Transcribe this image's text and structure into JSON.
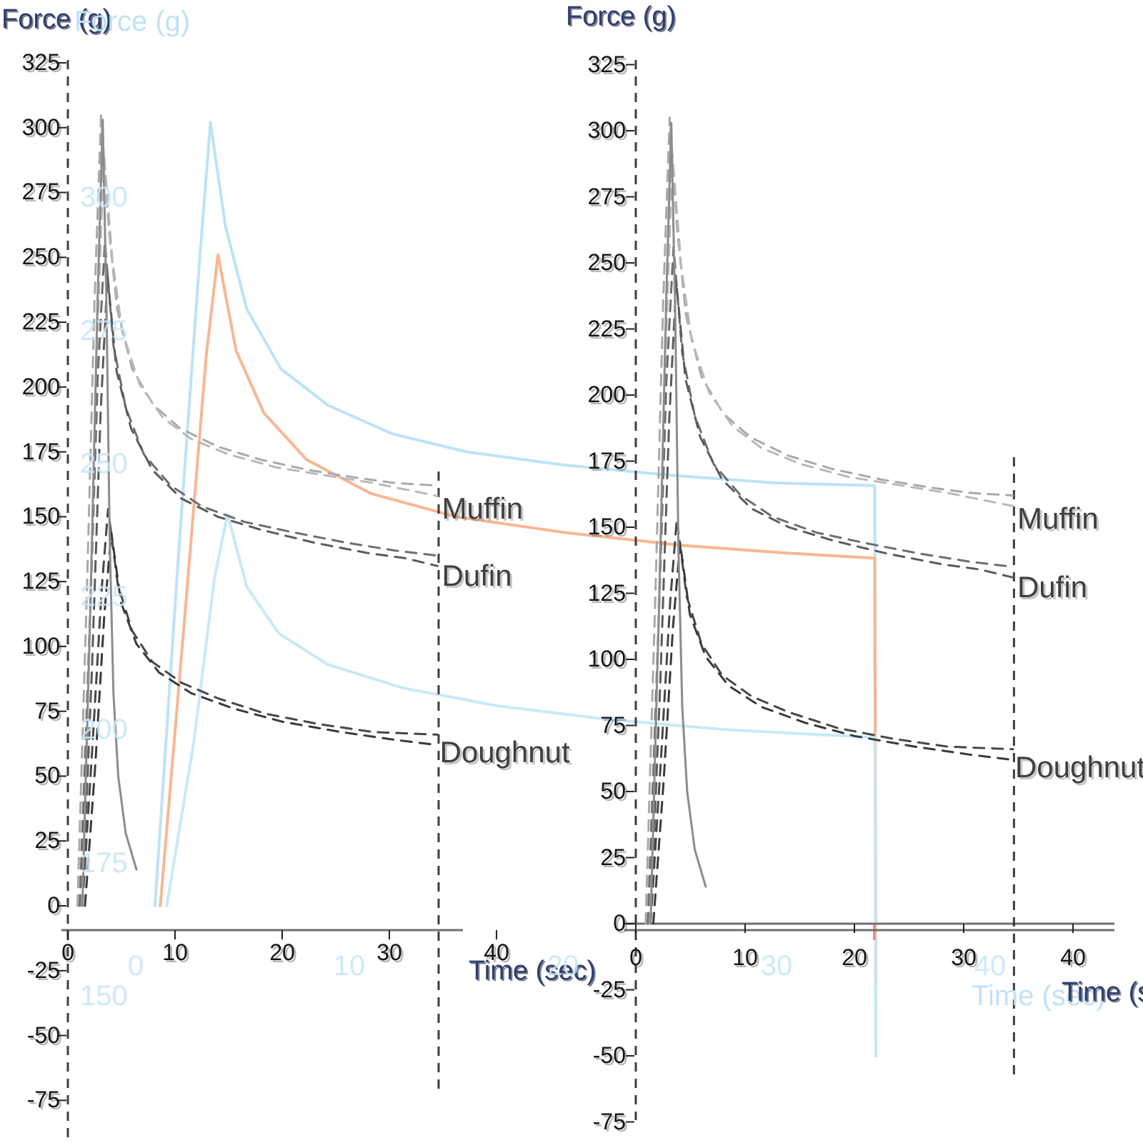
{
  "page": {
    "background": "#ffffff"
  },
  "colors": {
    "axis_title": "#2d3f70",
    "tick_label": "#161616",
    "curve_label": "#3f3f3f",
    "cursor_line": "#2e2e2e",
    "axis_line": "#6f6f6f",
    "ghost_text": "#c6e6f7",
    "ghost_blue": "#b9e1f6",
    "ghost_orange": "#f8b28e"
  },
  "chart_data": {
    "type": "line",
    "title": "Force (g)",
    "xlabel": "Time (sec)",
    "xlim": [
      0,
      40
    ],
    "ylim": [
      -75,
      325
    ],
    "grid": false,
    "legend": "curve-end labels",
    "panels": [
      {
        "id": "left"
      },
      {
        "id": "right"
      }
    ],
    "x_ticks": [
      0,
      10,
      20,
      30,
      40
    ],
    "y_ticks": [
      325,
      300,
      275,
      250,
      225,
      200,
      175,
      150,
      125,
      100,
      75,
      50,
      25,
      0,
      -25,
      -50,
      -75
    ],
    "cursor_lines_t": [
      0,
      34.6
    ],
    "series": [
      {
        "id": "muffin-band-upper",
        "group": "Muffin",
        "style": "dashed",
        "color": "#a9a9a9",
        "width": 3,
        "points": [
          [
            0.9,
            0
          ],
          [
            1.8,
            125
          ],
          [
            2.5,
            235
          ],
          [
            3.1,
            305
          ],
          [
            3.8,
            262
          ],
          [
            4.6,
            230
          ],
          [
            6,
            207
          ],
          [
            8,
            193
          ],
          [
            10.5,
            184
          ],
          [
            14,
            177
          ],
          [
            18,
            172
          ],
          [
            22.5,
            168
          ],
          [
            27,
            165
          ],
          [
            30.5,
            163
          ],
          [
            34.5,
            162
          ]
        ]
      },
      {
        "id": "muffin-band-lower",
        "group": "Muffin",
        "style": "dashed",
        "color": "#b8b8b8",
        "width": 3,
        "points": [
          [
            1.15,
            0
          ],
          [
            2.05,
            112
          ],
          [
            2.75,
            218
          ],
          [
            3.35,
            291
          ],
          [
            4.15,
            249
          ],
          [
            5.1,
            221
          ],
          [
            6.7,
            201
          ],
          [
            8.9,
            188
          ],
          [
            11.5,
            180
          ],
          [
            15,
            174
          ],
          [
            19.5,
            169
          ],
          [
            24,
            166
          ],
          [
            28.5,
            163
          ],
          [
            34.5,
            158
          ]
        ]
      },
      {
        "id": "dufin-band-upper",
        "group": "Dufin",
        "style": "dashed",
        "color": "#6e6e6e",
        "width": 3,
        "points": [
          [
            1.1,
            0
          ],
          [
            2.0,
            102
          ],
          [
            2.8,
            205
          ],
          [
            3.45,
            256
          ],
          [
            4.25,
            216
          ],
          [
            5.4,
            192
          ],
          [
            7.1,
            174
          ],
          [
            9.6,
            162
          ],
          [
            12.5,
            154
          ],
          [
            16.5,
            148
          ],
          [
            21,
            144
          ],
          [
            26,
            140
          ],
          [
            30.5,
            137
          ],
          [
            34.5,
            135
          ]
        ]
      },
      {
        "id": "dufin-band-lower",
        "group": "Dufin",
        "style": "dashed",
        "color": "#5b5b5b",
        "width": 3,
        "points": [
          [
            1.35,
            0
          ],
          [
            2.25,
            92
          ],
          [
            3.05,
            190
          ],
          [
            3.7,
            243
          ],
          [
            4.55,
            206
          ],
          [
            5.9,
            184
          ],
          [
            7.9,
            168
          ],
          [
            10.6,
            157
          ],
          [
            14,
            150
          ],
          [
            18,
            145
          ],
          [
            23,
            140
          ],
          [
            28,
            136
          ],
          [
            31.5,
            134
          ],
          [
            34.5,
            131
          ]
        ]
      },
      {
        "id": "doughnut-band-upper",
        "group": "Doughnut",
        "style": "dashed",
        "color": "#474747",
        "width": 3,
        "points": [
          [
            1.35,
            0
          ],
          [
            2.3,
            62
          ],
          [
            3.15,
            122
          ],
          [
            3.75,
            153
          ],
          [
            4.65,
            124
          ],
          [
            6,
            106
          ],
          [
            7.9,
            94
          ],
          [
            10.6,
            86
          ],
          [
            14,
            80
          ],
          [
            18.5,
            74
          ],
          [
            23.5,
            70
          ],
          [
            28.5,
            67
          ],
          [
            34.5,
            66
          ]
        ]
      },
      {
        "id": "doughnut-band-lower",
        "group": "Doughnut",
        "style": "dashed",
        "color": "#3a3a3a",
        "width": 3,
        "points": [
          [
            1.6,
            0
          ],
          [
            2.55,
            54
          ],
          [
            3.4,
            112
          ],
          [
            4.05,
            144
          ],
          [
            4.95,
            117
          ],
          [
            6.4,
            101
          ],
          [
            8.5,
            90
          ],
          [
            11.5,
            82
          ],
          [
            15.5,
            76
          ],
          [
            20,
            71
          ],
          [
            25.5,
            67
          ],
          [
            30.5,
            64
          ],
          [
            34.5,
            62
          ]
        ]
      },
      {
        "id": "compression-spike",
        "group": "spike",
        "style": "solid",
        "color": "#8c8c8c",
        "width": 3,
        "points": [
          [
            1.35,
            0
          ],
          [
            2.1,
            115
          ],
          [
            2.8,
            238
          ],
          [
            3.25,
            303
          ],
          [
            3.6,
            232
          ],
          [
            3.9,
            142
          ],
          [
            4.25,
            82
          ],
          [
            4.7,
            50
          ],
          [
            5.4,
            28
          ],
          [
            6.4,
            14
          ]
        ]
      }
    ],
    "curve_labels": [
      {
        "text": "Muffin",
        "t": 34.9,
        "F": 154
      },
      {
        "text": "Dufin",
        "t": 34.9,
        "F": 128
      },
      {
        "text": "Doughnut",
        "t": 34.7,
        "F": 60
      }
    ],
    "ghost": {
      "title": "Force (g)",
      "xlabel": "Time (sec)",
      "x_ticks": [
        0,
        10,
        20,
        30,
        40
      ],
      "y_ticks": [
        300,
        275,
        250,
        225,
        200,
        175,
        150
      ],
      "series": [
        {
          "id": "muffin-ghost",
          "color": "#b9e1f6",
          "width": 4,
          "points": [
            [
              0.9,
              0
            ],
            [
              2.0,
              135
            ],
            [
              3.0,
              250
            ],
            [
              3.5,
              302
            ],
            [
              4.2,
              262
            ],
            [
              5.2,
              230
            ],
            [
              6.8,
              207
            ],
            [
              9,
              193
            ],
            [
              12,
              182
            ],
            [
              15.5,
              175
            ],
            [
              20,
              170
            ],
            [
              25,
              166
            ],
            [
              30,
              163
            ],
            [
              34.6,
              162
            ],
            [
              34.65,
              -58
            ]
          ]
        },
        {
          "id": "dufin-ghost",
          "color": "#f8b28e",
          "width": 4,
          "points": [
            [
              1.15,
              0
            ],
            [
              2.3,
              112
            ],
            [
              3.3,
              212
            ],
            [
              3.85,
              251
            ],
            [
              4.7,
              214
            ],
            [
              6,
              190
            ],
            [
              8,
              172
            ],
            [
              11,
              159
            ],
            [
              15,
              150
            ],
            [
              20,
              144
            ],
            [
              25.5,
              139
            ],
            [
              30.5,
              136
            ],
            [
              34.6,
              134
            ],
            [
              34.65,
              -30
            ]
          ]
        },
        {
          "id": "doughnut-ghost",
          "color": "#c5e8f8",
          "width": 4,
          "points": [
            [
              1.45,
              0
            ],
            [
              2.7,
              62
            ],
            [
              3.7,
              127
            ],
            [
              4.3,
              151
            ],
            [
              5.2,
              123
            ],
            [
              6.7,
              105
            ],
            [
              9,
              93
            ],
            [
              12.5,
              84
            ],
            [
              17,
              77
            ],
            [
              22,
              72
            ],
            [
              27.5,
              68
            ],
            [
              32,
              66
            ],
            [
              34.6,
              65
            ],
            [
              34.65,
              -58
            ]
          ]
        }
      ]
    }
  }
}
